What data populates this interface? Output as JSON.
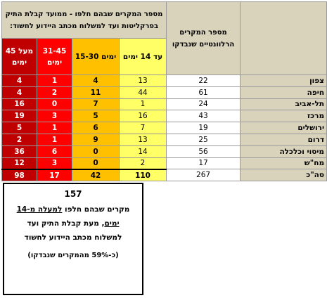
{
  "header": {
    "group_title": "מספר המקרים שבהם חלפו - ממועד קבלת התיק בפרקליטות ועד למשלוח מכתב היידוע לחשוד:",
    "relevant_cases": "מספר המקרים הרלוונטיים שנבדקו",
    "buckets": [
      {
        "label": "מעל 45 ימים",
        "color": "#c00000"
      },
      {
        "label": "31-45 ימים",
        "color": "#ff0000"
      },
      {
        "label": "15-30 ימים",
        "color": "#ffc000"
      },
      {
        "label": "עד 14 ימים",
        "color": "#ffff66"
      }
    ]
  },
  "rows": [
    {
      "name": "צפון",
      "relevant": "22",
      "upto14": "13",
      "d15_30": "4",
      "d31_45": "1",
      "over45": "4"
    },
    {
      "name": "חיפה",
      "relevant": "61",
      "upto14": "44",
      "d15_30": "11",
      "d31_45": "2",
      "over45": "4"
    },
    {
      "name": "תל-אביב",
      "relevant": "24",
      "upto14": "1",
      "d15_30": "7",
      "d31_45": "0",
      "over45": "16"
    },
    {
      "name": "מרכז",
      "relevant": "43",
      "upto14": "16",
      "d15_30": "5",
      "d31_45": "3",
      "over45": "19"
    },
    {
      "name": "ירושלים",
      "relevant": "19",
      "upto14": "7",
      "d15_30": "6",
      "d31_45": "1",
      "over45": "5"
    },
    {
      "name": "דרום",
      "relevant": "25",
      "upto14": "13",
      "d15_30": "9",
      "d31_45": "1",
      "over45": "2"
    },
    {
      "name": "מיסוי וכלכלה",
      "relevant": "56",
      "upto14": "14",
      "d15_30": "0",
      "d31_45": "6",
      "over45": "36"
    },
    {
      "name": "מח\"ש",
      "relevant": "17",
      "upto14": "2",
      "d15_30": "0",
      "d31_45": "3",
      "over45": "12"
    },
    {
      "name": "סה\"כ",
      "relevant": "267",
      "upto14": "110",
      "d15_30": "42",
      "d31_45": "17",
      "over45": "98"
    }
  ],
  "summary": {
    "count": "157",
    "line1_pre": "מקרים שבהם חלפו ",
    "line1_ul": "למעלה מ-14",
    "line2_ul": "ימים",
    "line2_rest": ", מעת קבלת התיק ועד",
    "line3": "למשלוח מכתב היידוע לחשוד",
    "foot": "(כ-59% מהמקרים שנבדקו)"
  }
}
